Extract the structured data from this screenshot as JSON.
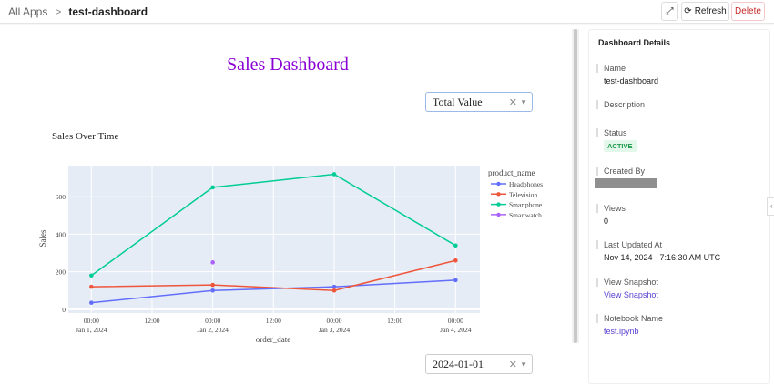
{
  "header": {
    "breadcrumb_root": "All Apps",
    "breadcrumb_sep": ">",
    "breadcrumb_current": "test-dashboard",
    "refresh_label": "Refresh",
    "delete_label": "Delete",
    "expand_icon": "expand-icon",
    "refresh_icon": "refresh-icon"
  },
  "main": {
    "title": "Sales Dashboard",
    "metric_select": {
      "value": "Total Value"
    },
    "date_select": {
      "value": "2024-01-01"
    }
  },
  "chart_data": {
    "type": "line",
    "title": "Sales Over Time",
    "xlabel": "order_date",
    "ylabel": "Sales",
    "legend_title": "product_name",
    "legend_placement": "right",
    "grid": true,
    "x": [
      "2024-01-01",
      "2024-01-02",
      "2024-01-03",
      "2024-01-04"
    ],
    "x_ticks": [
      [
        "00:00",
        "Jan 1, 2024"
      ],
      [
        "12:00",
        ""
      ],
      [
        "00:00",
        "Jan 2, 2024"
      ],
      [
        "12:00",
        ""
      ],
      [
        "00:00",
        "Jan 3, 2024"
      ],
      [
        "12:00",
        ""
      ],
      [
        "00:00",
        "Jan 4, 2024"
      ]
    ],
    "y_ticks": [
      0,
      200,
      400,
      600
    ],
    "ylim": [
      -20,
      766
    ],
    "series": [
      {
        "name": "Headphones",
        "color": "#636efa",
        "values": [
          35,
          100,
          120,
          155
        ]
      },
      {
        "name": "Television",
        "color": "#ef553b",
        "values": [
          120,
          130,
          100,
          260
        ]
      },
      {
        "name": "Smartphone",
        "color": "#00cc96",
        "values": [
          180,
          650,
          720,
          340
        ]
      },
      {
        "name": "Smartwatch",
        "color": "#ab63fa",
        "values": [
          null,
          250,
          null,
          null
        ]
      }
    ]
  },
  "panel": {
    "title": "Dashboard Details",
    "fields": [
      {
        "label": "Name",
        "value": "test-dashboard"
      },
      {
        "label": "Description",
        "value": ""
      },
      {
        "label": "Status",
        "value": "ACTIVE"
      },
      {
        "label": "Created By",
        "value": ""
      },
      {
        "label": "Views",
        "value": "0"
      },
      {
        "label": "Last Updated At",
        "value": "Nov 14, 2024 - 7:16:30 AM UTC"
      },
      {
        "label": "View Snapshot",
        "value": "View Snapshot"
      },
      {
        "label": "Notebook Name",
        "value": "test.ipynb"
      }
    ],
    "collapse_icon": "chevron-left-icon"
  },
  "colors": {
    "accent": "#5a3fd0",
    "title": "#8a00d4",
    "delete": "#c62828",
    "active": "#1d9a4b"
  }
}
